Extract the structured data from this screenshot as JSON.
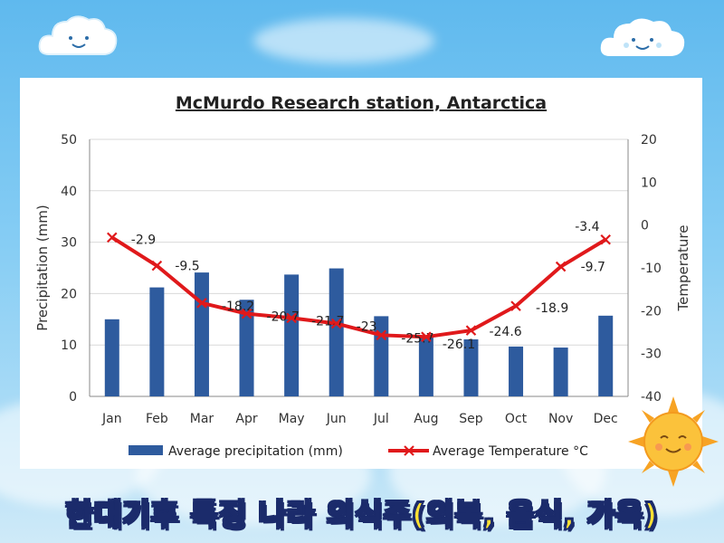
{
  "banner": {
    "text": "한대기후 특징 나라 의식주(의복, 음식, 가옥)"
  },
  "chart_data": {
    "type": "bar+line",
    "title": "McMurdo Research station, Antarctica",
    "categories": [
      "Jan",
      "Feb",
      "Mar",
      "Apr",
      "May",
      "Jun",
      "Jul",
      "Aug",
      "Sep",
      "Oct",
      "Nov",
      "Dec"
    ],
    "ylabel_left": "Precipitation (mm)",
    "ylabel_right": "Temperature",
    "ylim_left": [
      0,
      50
    ],
    "yticks_left": [
      0,
      10,
      20,
      30,
      40,
      50
    ],
    "ylim_right": [
      -40,
      20
    ],
    "yticks_right": [
      -40,
      -30,
      -20,
      -10,
      0,
      10,
      20
    ],
    "grid": true,
    "legend_position": "bottom",
    "series": [
      {
        "name": "Average precipitation (mm)",
        "type": "bar",
        "axis": "left",
        "color": "#2e5b9e",
        "values": [
          15,
          21.2,
          24.1,
          18.8,
          23.7,
          24.9,
          15.6,
          11.8,
          11.1,
          9.7,
          9.5,
          15.7
        ]
      },
      {
        "name": "Average Temperature °C",
        "type": "line",
        "axis": "right",
        "color": "#e0191b",
        "values": [
          -2.9,
          -9.5,
          -18.2,
          -20.7,
          -21.7,
          -23,
          -25.7,
          -26.1,
          -24.6,
          -18.9,
          -9.7,
          -3.4
        ],
        "labels": [
          "-2.9",
          "-9.5",
          "-18.2",
          "-20.7",
          "-21.7",
          "-23",
          "-25.7",
          "-26.1",
          "-24.6",
          "-18.9",
          "-9.7",
          "-3.4"
        ]
      }
    ]
  }
}
